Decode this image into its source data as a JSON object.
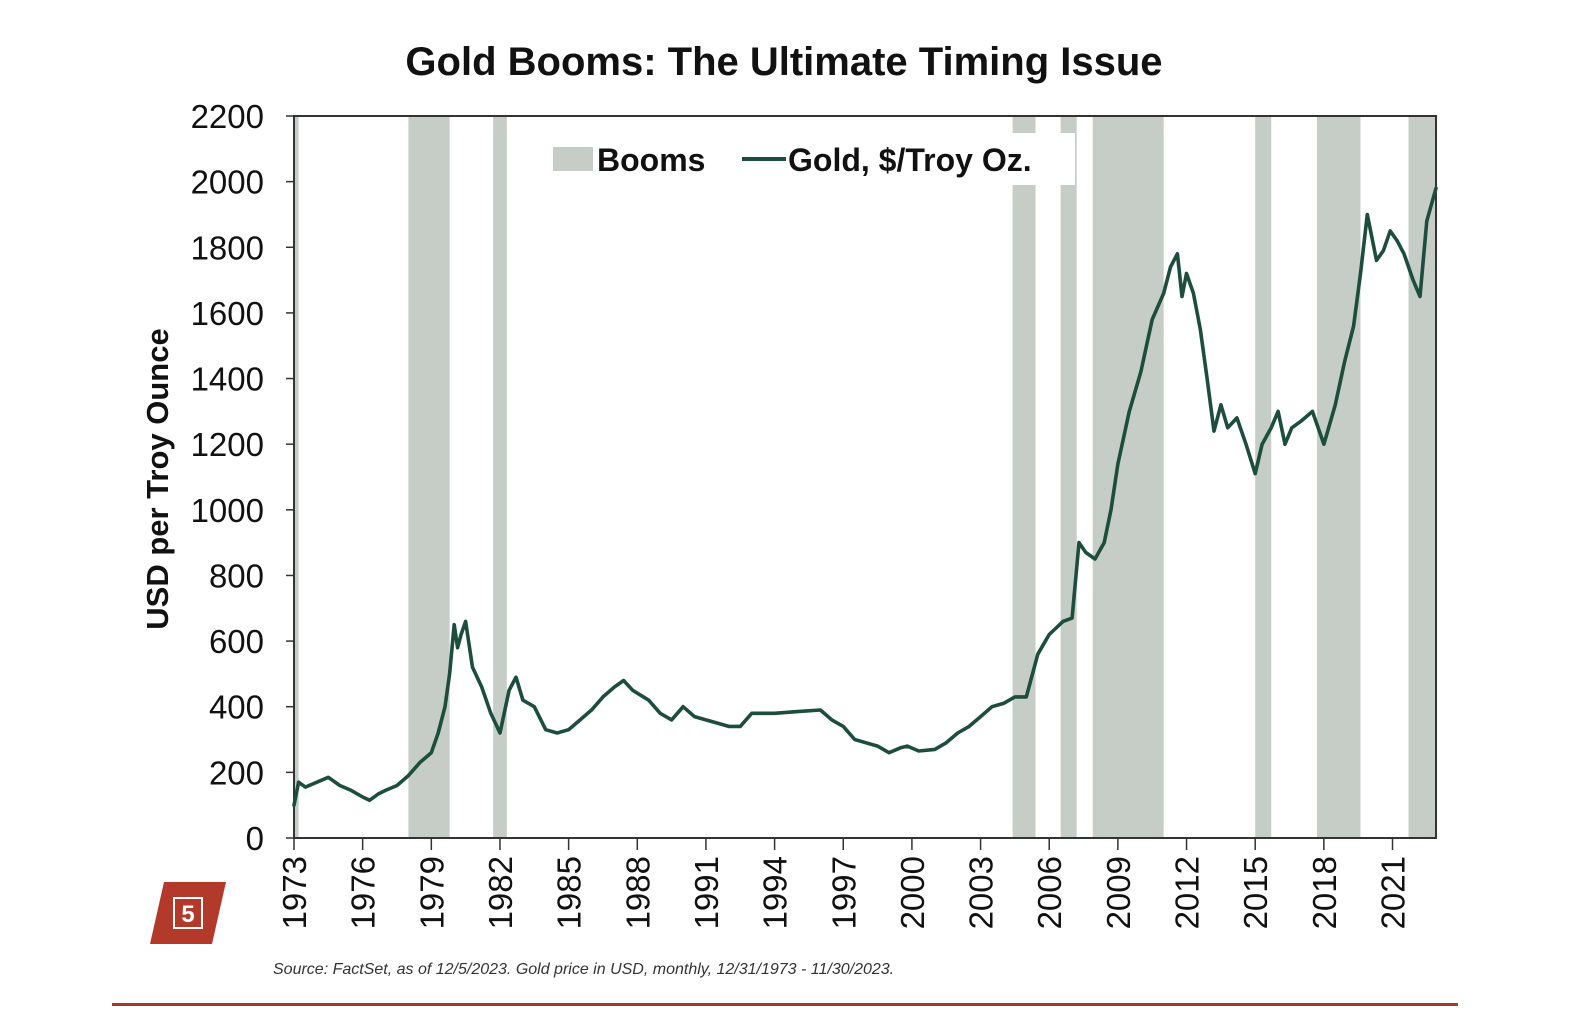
{
  "badge": {
    "number": "5",
    "color": "#b33a2b"
  },
  "footer": {
    "rule_color": "#a83a2b"
  },
  "colors": {
    "line": "#1d4d3d",
    "boom": "#c6cdc6",
    "axis": "#333333"
  },
  "chart_data": {
    "type": "line",
    "title": "Gold Booms: The Ultimate Timing Issue",
    "xlabel": "",
    "ylabel": "USD per Troy Ounce",
    "source": "Source: FactSet, as of 12/5/2023. Gold price in USD, monthly, 12/31/1973 - 11/30/2023.",
    "xlim": [
      1973.0,
      2022.9
    ],
    "ylim": [
      0,
      2200
    ],
    "yticks": [
      0,
      200,
      400,
      600,
      800,
      1000,
      1200,
      1400,
      1600,
      1800,
      2000,
      2200
    ],
    "xticks": [
      "1973",
      "1976",
      "1979",
      "1982",
      "1985",
      "1988",
      "1991",
      "1994",
      "1997",
      "2000",
      "2003",
      "2006",
      "2009",
      "2012",
      "2015",
      "2018",
      "2021"
    ],
    "legend": [
      {
        "label": "Booms",
        "kind": "bar"
      },
      {
        "label": "Gold, $/Troy Oz.",
        "kind": "line"
      }
    ],
    "legend_position": "top-center",
    "booms": [
      [
        1973.0,
        1973.2
      ],
      [
        1978.0,
        1979.8
      ],
      [
        1981.7,
        1982.3
      ],
      [
        2004.4,
        2005.4
      ],
      [
        2006.5,
        2007.2
      ],
      [
        2007.9,
        2011.0
      ],
      [
        2015.0,
        2015.7
      ],
      [
        2017.7,
        2019.6
      ],
      [
        2021.7,
        2022.9
      ]
    ],
    "series": [
      {
        "name": "Gold, $/Troy Oz.",
        "x": [
          1973.0,
          1973.2,
          1973.5,
          1974.0,
          1974.5,
          1975.0,
          1975.5,
          1976.0,
          1976.3,
          1976.7,
          1977.0,
          1977.5,
          1978.0,
          1978.5,
          1979.0,
          1979.3,
          1979.6,
          1979.8,
          1980.0,
          1980.15,
          1980.3,
          1980.5,
          1980.8,
          1981.2,
          1981.6,
          1982.0,
          1982.4,
          1982.7,
          1983.0,
          1983.5,
          1984.0,
          1984.5,
          1985.0,
          1985.5,
          1986.0,
          1986.5,
          1987.0,
          1987.4,
          1987.8,
          1988.5,
          1989.0,
          1989.5,
          1990.0,
          1990.5,
          1991.0,
          1991.5,
          1992.0,
          1992.5,
          1993.0,
          1993.5,
          1994.0,
          1995.0,
          1996.0,
          1996.5,
          1997.0,
          1997.5,
          1998.0,
          1998.5,
          1999.0,
          1999.5,
          1999.8,
          2000.3,
          2001.0,
          2001.5,
          2002.0,
          2002.5,
          2003.0,
          2003.5,
          2004.0,
          2004.5,
          2005.0,
          2005.5,
          2006.0,
          2006.3,
          2006.6,
          2007.0,
          2007.3,
          2007.6,
          2008.0,
          2008.4,
          2008.7,
          2009.0,
          2009.5,
          2010.0,
          2010.5,
          2011.0,
          2011.3,
          2011.6,
          2011.8,
          2012.0,
          2012.3,
          2012.6,
          2012.9,
          2013.2,
          2013.5,
          2013.8,
          2014.2,
          2014.6,
          2015.0,
          2015.3,
          2015.7,
          2016.0,
          2016.3,
          2016.6,
          2017.0,
          2017.5,
          2018.0,
          2018.5,
          2018.9,
          2019.3,
          2019.6,
          2019.9,
          2020.3,
          2020.6,
          2020.9,
          2021.2,
          2021.5,
          2021.9,
          2022.2,
          2022.5,
          2022.9
        ],
        "values": [
          100,
          170,
          155,
          170,
          185,
          160,
          145,
          125,
          115,
          135,
          145,
          160,
          190,
          230,
          260,
          320,
          400,
          500,
          650,
          580,
          620,
          660,
          520,
          460,
          380,
          320,
          450,
          490,
          420,
          400,
          330,
          320,
          330,
          360,
          390,
          430,
          460,
          480,
          450,
          420,
          380,
          360,
          400,
          370,
          360,
          350,
          340,
          340,
          380,
          380,
          380,
          385,
          390,
          360,
          340,
          300,
          290,
          280,
          260,
          275,
          280,
          265,
          270,
          290,
          320,
          340,
          370,
          400,
          410,
          430,
          430,
          560,
          620,
          640,
          660,
          670,
          900,
          870,
          850,
          900,
          1000,
          1140,
          1300,
          1420,
          1580,
          1660,
          1740,
          1780,
          1650,
          1720,
          1660,
          1550,
          1400,
          1240,
          1320,
          1250,
          1280,
          1200,
          1110,
          1200,
          1250,
          1300,
          1200,
          1250,
          1270,
          1300,
          1200,
          1320,
          1450,
          1560,
          1720,
          1900,
          1760,
          1790,
          1850,
          1820,
          1780,
          1700,
          1650,
          1880,
          1980
        ]
      }
    ]
  }
}
